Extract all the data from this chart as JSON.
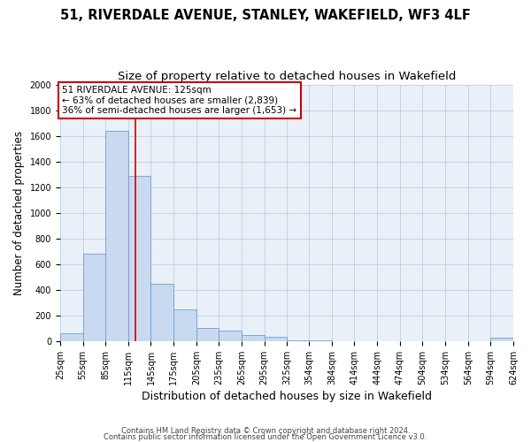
{
  "title_line1": "51, RIVERDALE AVENUE, STANLEY, WAKEFIELD, WF3 4LF",
  "title_line2": "Size of property relative to detached houses in Wakefield",
  "xlabel": "Distribution of detached houses by size in Wakefield",
  "ylabel": "Number of detached properties",
  "bar_color": "#c9d9ef",
  "bar_edge_color": "#6a9fd8",
  "annotation_box_color": "#ffffff",
  "annotation_box_edge_color": "#cc0000",
  "vline_color": "#cc0000",
  "vline_x": 125,
  "annotation_line1": "51 RIVERDALE AVENUE: 125sqm",
  "annotation_line2": "← 63% of detached houses are smaller (2,839)",
  "annotation_line3": "36% of semi-detached houses are larger (1,653) →",
  "footnote_line1": "Contains HM Land Registry data © Crown copyright and database right 2024.",
  "footnote_line2": "Contains public sector information licensed under the Open Government Licence v3.0.",
  "bin_edges": [
    25,
    55,
    85,
    115,
    145,
    175,
    205,
    235,
    265,
    295,
    325,
    354,
    384,
    414,
    444,
    474,
    504,
    534,
    564,
    594,
    624
  ],
  "bar_heights": [
    65,
    680,
    1640,
    1290,
    450,
    250,
    105,
    80,
    50,
    35,
    10,
    5,
    3,
    2,
    1,
    1,
    0,
    0,
    0,
    30
  ],
  "ylim": [
    0,
    2000
  ],
  "yticks": [
    0,
    200,
    400,
    600,
    800,
    1000,
    1200,
    1400,
    1600,
    1800,
    2000
  ],
  "background_color": "#ffffff",
  "axes_bg_color": "#eaf0f8",
  "grid_color": "#c0cfe0",
  "title_fontsize": 10.5,
  "subtitle_fontsize": 9.5,
  "tick_label_fontsize": 7,
  "ylabel_fontsize": 8.5,
  "xlabel_fontsize": 9,
  "annotation_fontsize": 7.5,
  "footnote_fontsize": 6
}
